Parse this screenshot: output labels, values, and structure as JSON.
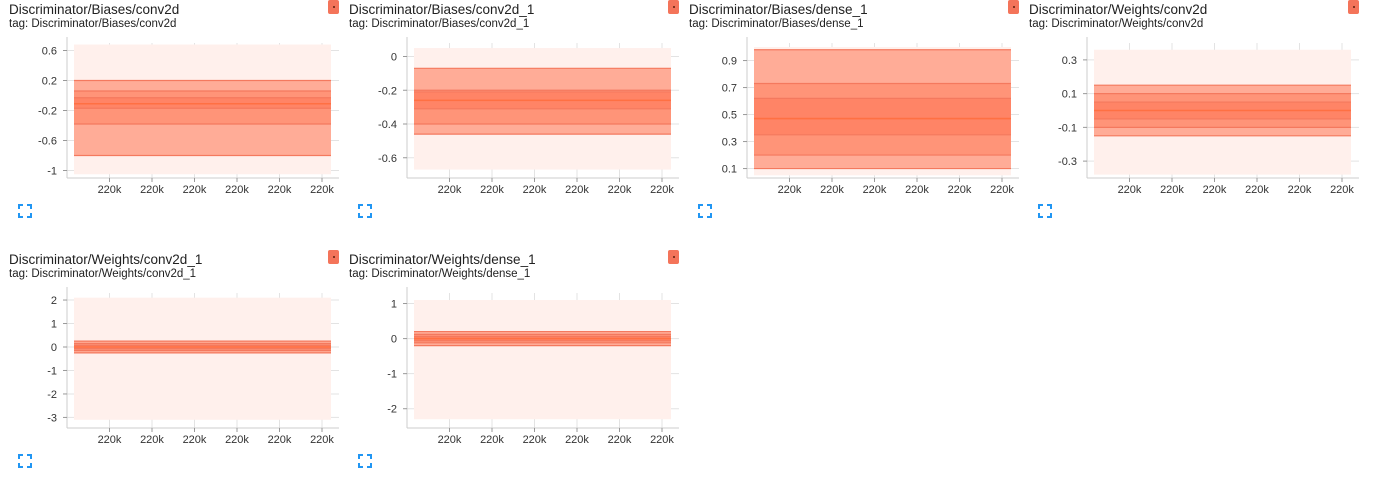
{
  "colors": {
    "accent": "#ff7043",
    "badge": "#f4745a",
    "expand": "#2196f3"
  },
  "icons": {
    "run_badge": "run-color-icon",
    "expand": "fullscreen-expand-icon"
  },
  "cards": [
    {
      "title": "Discriminator/Biases/conv2d",
      "tag": "tag: Discriminator/Biases/conv2d",
      "chart_data": {
        "type": "area",
        "x_tick_labels": [
          "220k",
          "220k",
          "220k",
          "220k",
          "220k",
          "220k"
        ],
        "ylim": [
          -1.1,
          0.7
        ],
        "y_ticks": [
          -1,
          -0.6,
          -0.2,
          0.2,
          0.6
        ],
        "bands": [
          [
            -1.05,
            0.68
          ],
          [
            -0.8,
            0.2
          ],
          [
            -0.38,
            0.06
          ],
          [
            -0.17,
            -0.03
          ]
        ],
        "median": -0.11
      }
    },
    {
      "title": "Discriminator/Biases/conv2d_1",
      "tag": "tag: Discriminator/Biases/conv2d_1",
      "chart_data": {
        "type": "area",
        "x_tick_labels": [
          "220k",
          "220k",
          "220k",
          "220k",
          "220k",
          "220k"
        ],
        "ylim": [
          -0.72,
          0.08
        ],
        "y_ticks": [
          -0.6,
          -0.4,
          -0.2,
          0
        ],
        "bands": [
          [
            -0.67,
            0.05
          ],
          [
            -0.46,
            -0.07
          ],
          [
            -0.4,
            -0.2
          ],
          [
            -0.31,
            -0.21
          ]
        ],
        "median": -0.26
      }
    },
    {
      "title": "Discriminator/Biases/dense_1",
      "tag": "tag: Discriminator/Biases/dense_1",
      "chart_data": {
        "type": "area",
        "x_tick_labels": [
          "220k",
          "220k",
          "220k",
          "220k",
          "220k",
          "220k"
        ],
        "ylim": [
          0.03,
          1.03
        ],
        "y_ticks": [
          0.1,
          0.3,
          0.5,
          0.7,
          0.9
        ],
        "bands": [
          [
            0.05,
            1.0
          ],
          [
            0.1,
            0.98
          ],
          [
            0.2,
            0.73
          ],
          [
            0.35,
            0.62
          ]
        ],
        "median": 0.47
      }
    },
    {
      "title": "Discriminator/Weights/conv2d",
      "tag": "tag: Discriminator/Weights/conv2d",
      "chart_data": {
        "type": "area",
        "x_tick_labels": [
          "220k",
          "220k",
          "220k",
          "220k",
          "220k",
          "220k"
        ],
        "ylim": [
          -0.4,
          0.4
        ],
        "y_ticks": [
          -0.3,
          -0.1,
          0.1,
          0.3
        ],
        "bands": [
          [
            -0.38,
            0.36
          ],
          [
            -0.15,
            0.15
          ],
          [
            -0.1,
            0.1
          ],
          [
            -0.05,
            0.05
          ]
        ],
        "median": 0.0
      }
    },
    {
      "title": "Discriminator/Weights/conv2d_1",
      "tag": "tag: Discriminator/Weights/conv2d_1",
      "chart_data": {
        "type": "area",
        "x_tick_labels": [
          "220k",
          "220k",
          "220k",
          "220k",
          "220k",
          "220k"
        ],
        "ylim": [
          -3.45,
          2.3
        ],
        "y_ticks": [
          -3,
          -2,
          -1,
          0,
          1,
          2
        ],
        "bands": [
          [
            -3.1,
            2.1
          ],
          [
            -0.25,
            0.25
          ],
          [
            -0.15,
            0.15
          ],
          [
            -0.07,
            0.07
          ]
        ],
        "median": 0.0
      }
    },
    {
      "title": "Discriminator/Weights/dense_1",
      "tag": "tag: Discriminator/Weights/dense_1",
      "chart_data": {
        "type": "area",
        "x_tick_labels": [
          "220k",
          "220k",
          "220k",
          "220k",
          "220k",
          "220k"
        ],
        "ylim": [
          -2.55,
          1.3
        ],
        "y_ticks": [
          -2,
          -1,
          0,
          1
        ],
        "bands": [
          [
            -2.3,
            1.1
          ],
          [
            -0.2,
            0.2
          ],
          [
            -0.12,
            0.12
          ],
          [
            -0.06,
            0.06
          ]
        ],
        "median": 0.0
      }
    }
  ]
}
